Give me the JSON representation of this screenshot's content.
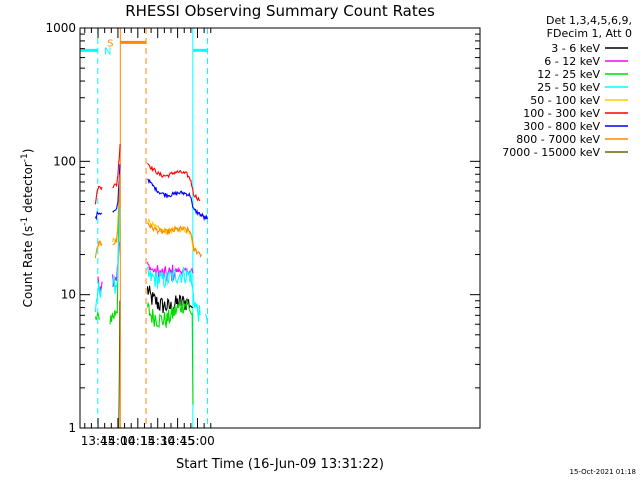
{
  "chart_data": {
    "type": "line",
    "title": "RHESSI Observing Summary Count Rates",
    "xlabel": "Start Time (16-Jun-09 13:31:22)",
    "ylabel_prefix": "Count Rate (s",
    "ylabel_sup1": "-1",
    "ylabel_mid": " detector",
    "ylabel_sup2": "-1",
    "ylabel_suffix": ")",
    "yscale": "log",
    "ylim": [
      1,
      1000
    ],
    "xlim_min": [
      811.4,
      1113
    ],
    "x_ticks": [
      {
        "value": 825,
        "label": "13:45"
      },
      {
        "value": 840,
        "label": "14:00"
      },
      {
        "value": 855,
        "label": "14:15"
      },
      {
        "value": 870,
        "label": "14:30"
      },
      {
        "value": 885,
        "label": "14:45"
      },
      {
        "value": 900,
        "label": "15:00"
      }
    ],
    "y_ticks": [
      {
        "value": 1,
        "label": "1"
      },
      {
        "value": 10,
        "label": "10"
      },
      {
        "value": 100,
        "label": "100"
      },
      {
        "value": 1000,
        "label": "1000"
      }
    ],
    "legend_header": [
      "Det 1,3,4,5,6,9,",
      "FDecim 1, Att 0"
    ],
    "legend_position": "right",
    "timestamp": "15-Oct-2021 01:18",
    "series": [
      {
        "name": "3 - 6 keV",
        "color": "#000000",
        "points": [
          [
            862.2,
            11
          ],
          [
            865,
            9.5
          ],
          [
            868,
            9
          ],
          [
            871,
            8.5
          ],
          [
            874,
            8.3
          ],
          [
            877,
            8.2
          ],
          [
            880,
            8
          ],
          [
            883,
            8.5
          ],
          [
            886,
            8.8
          ],
          [
            889,
            8.8
          ],
          [
            892,
            8.8
          ],
          [
            895,
            8.5
          ],
          [
            896.5,
            8
          ]
        ]
      },
      {
        "name": "6 - 12 keV",
        "color": "#ff00ff",
        "points": [
          [
            825,
            12
          ],
          [
            828,
            12.5
          ],
          [
            832,
            13
          ],
          [
            836,
            13.5
          ],
          [
            839,
            14
          ],
          [
            840,
            17
          ],
          [
            841.3,
            25
          ],
          [
            862.2,
            17
          ],
          [
            865,
            15.5
          ],
          [
            868,
            15
          ],
          [
            871,
            14.5
          ],
          [
            874,
            14.2
          ],
          [
            877,
            14
          ],
          [
            880,
            14.5
          ],
          [
            883,
            15
          ],
          [
            886,
            15.2
          ],
          [
            889,
            15
          ],
          [
            892,
            15
          ],
          [
            895,
            15
          ],
          [
            896.5,
            14.5
          ]
        ]
      },
      {
        "name": "12 - 25 keV",
        "color": "#00dd00",
        "points": [
          [
            823,
            6.5
          ],
          [
            826,
            6.5
          ],
          [
            830,
            6.5
          ],
          [
            834,
            6.8
          ],
          [
            837,
            7
          ],
          [
            839.5,
            8
          ],
          [
            840.2,
            20
          ],
          [
            840.8,
            40
          ],
          [
            841.3,
            70
          ],
          [
            862.2,
            8
          ],
          [
            865,
            7
          ],
          [
            868,
            6.8
          ],
          [
            871,
            6.5
          ],
          [
            874,
            6.5
          ],
          [
            877,
            6.5
          ],
          [
            880,
            7
          ],
          [
            883,
            7.5
          ],
          [
            886,
            8
          ],
          [
            889,
            8.5
          ],
          [
            892,
            8.5
          ],
          [
            894,
            8
          ],
          [
            896,
            7
          ],
          [
            896.6,
            1.5
          ]
        ]
      },
      {
        "name": "25 - 50 keV",
        "color": "#00ffff",
        "points": [
          [
            811.4,
            6.5
          ],
          [
            815,
            6.5
          ],
          [
            819,
            6.5
          ],
          [
            823,
            6.5
          ],
          [
            825,
            11
          ],
          [
            828,
            11.2
          ],
          [
            832,
            11.5
          ],
          [
            836,
            11.8
          ],
          [
            839,
            12
          ],
          [
            840,
            16
          ],
          [
            841,
            28
          ],
          [
            841.5,
            45
          ],
          [
            862.2,
            14
          ],
          [
            865,
            13.5
          ],
          [
            868,
            13.2
          ],
          [
            871,
            13
          ],
          [
            874,
            13
          ],
          [
            877,
            13
          ],
          [
            880,
            13.5
          ],
          [
            883,
            14
          ],
          [
            886,
            14.2
          ],
          [
            889,
            14.3
          ],
          [
            892,
            14.2
          ],
          [
            895,
            14
          ],
          [
            896,
            11
          ],
          [
            899,
            8
          ],
          [
            902,
            7
          ],
          [
            906,
            6.5
          ],
          [
            907.5,
            6
          ]
        ]
      },
      {
        "name": "50 - 100 keV",
        "color": "#ffcc00",
        "points": [
          [
            825,
            24
          ],
          [
            828,
            24
          ],
          [
            832,
            24.5
          ],
          [
            836,
            25
          ],
          [
            839,
            26
          ],
          [
            840,
            34
          ],
          [
            841,
            60
          ],
          [
            841.5,
            85
          ],
          [
            862.2,
            37
          ],
          [
            865,
            34
          ],
          [
            868,
            32
          ],
          [
            871,
            31
          ],
          [
            874,
            30
          ],
          [
            877,
            30
          ],
          [
            880,
            30.5
          ],
          [
            883,
            31
          ],
          [
            886,
            31
          ],
          [
            889,
            31
          ],
          [
            892,
            30.5
          ],
          [
            895,
            29.5
          ],
          [
            897,
            22
          ],
          [
            899,
            21
          ]
        ]
      },
      {
        "name": "100 - 300 keV",
        "color": "#ff0000",
        "points": [
          [
            811.4,
            50
          ],
          [
            815,
            50
          ],
          [
            819,
            49
          ],
          [
            823,
            49
          ],
          [
            825,
            64
          ],
          [
            828,
            64
          ],
          [
            832,
            64.5
          ],
          [
            836,
            65
          ],
          [
            839,
            67
          ],
          [
            840,
            80
          ],
          [
            841,
            110
          ],
          [
            841.6,
            135
          ],
          [
            862.2,
            98
          ],
          [
            865,
            90
          ],
          [
            868,
            85
          ],
          [
            871,
            80
          ],
          [
            874,
            78
          ],
          [
            877,
            78
          ],
          [
            880,
            80
          ],
          [
            883,
            83
          ],
          [
            886,
            83
          ],
          [
            889,
            82
          ],
          [
            892,
            80
          ],
          [
            895,
            72
          ],
          [
            897,
            57
          ],
          [
            900,
            53
          ],
          [
            902,
            51
          ],
          [
            907.5,
            50
          ]
        ]
      },
      {
        "name": "300 - 800 keV",
        "color": "#0000ff",
        "points": [
          [
            811.4,
            37
          ],
          [
            815,
            37
          ],
          [
            819,
            37
          ],
          [
            823,
            37
          ],
          [
            825,
            41
          ],
          [
            828,
            41
          ],
          [
            832,
            41
          ],
          [
            836,
            41.5
          ],
          [
            839,
            43
          ],
          [
            840,
            50
          ],
          [
            841,
            75
          ],
          [
            841.5,
            95
          ],
          [
            862.2,
            75
          ],
          [
            865,
            68
          ],
          [
            868,
            63
          ],
          [
            871,
            59
          ],
          [
            874,
            57
          ],
          [
            877,
            56
          ],
          [
            880,
            56
          ],
          [
            883,
            57
          ],
          [
            886,
            58
          ],
          [
            889,
            58
          ],
          [
            892,
            57
          ],
          [
            895,
            55
          ],
          [
            896.5,
            44
          ],
          [
            899,
            42
          ],
          [
            902,
            40
          ],
          [
            905,
            38
          ],
          [
            907.5,
            37
          ]
        ]
      },
      {
        "name": "800 - 7000 keV",
        "color": "#ff8800",
        "points": [
          [
            811.4,
            19
          ],
          [
            815,
            19
          ],
          [
            819,
            18.5
          ],
          [
            823,
            18.5
          ],
          [
            825,
            24
          ],
          [
            828,
            24
          ],
          [
            832,
            24.5
          ],
          [
            836,
            24.5
          ],
          [
            839,
            25
          ],
          [
            840,
            32
          ],
          [
            841,
            55
          ],
          [
            841.5,
            80
          ],
          [
            862.2,
            35
          ],
          [
            865,
            32
          ],
          [
            868,
            31
          ],
          [
            871,
            30
          ],
          [
            874,
            29.5
          ],
          [
            877,
            29.5
          ],
          [
            880,
            30
          ],
          [
            883,
            30.5
          ],
          [
            886,
            31
          ],
          [
            889,
            31
          ],
          [
            892,
            30.5
          ],
          [
            895,
            29.5
          ],
          [
            897,
            22
          ],
          [
            900,
            21
          ],
          [
            903,
            20
          ],
          [
            907.5,
            19
          ]
        ]
      },
      {
        "name": "7000 - 15000 keV",
        "color": "#666600",
        "points": [
          [
            840.6,
            1
          ],
          [
            841.1,
            3
          ],
          [
            841.4,
            9
          ]
        ]
      }
    ],
    "region_markers": [
      {
        "label": "N",
        "color": "#00ffff",
        "x_start": 811.4,
        "x_end": 824.8,
        "level": 680
      },
      {
        "label": "",
        "color": "#00ffff",
        "x_start": 896.5,
        "x_end": 907.5,
        "level": 680
      },
      {
        "label": "S",
        "color": "#ff8800",
        "x_start": 841.8,
        "x_end": 861.2,
        "level": 780
      }
    ],
    "vertical_lines": [
      {
        "x": 811.4,
        "color": "#00ffff",
        "style": "solid"
      },
      {
        "x": 824.8,
        "color": "#00ffff",
        "style": "dashed"
      },
      {
        "x": 841.8,
        "color": "#ff8800",
        "style": "solid"
      },
      {
        "x": 861.2,
        "color": "#ff8800",
        "style": "dashed"
      },
      {
        "x": 896.5,
        "color": "#00ffff",
        "style": "solid"
      },
      {
        "x": 907.5,
        "color": "#00ffff",
        "style": "dashed"
      }
    ]
  }
}
